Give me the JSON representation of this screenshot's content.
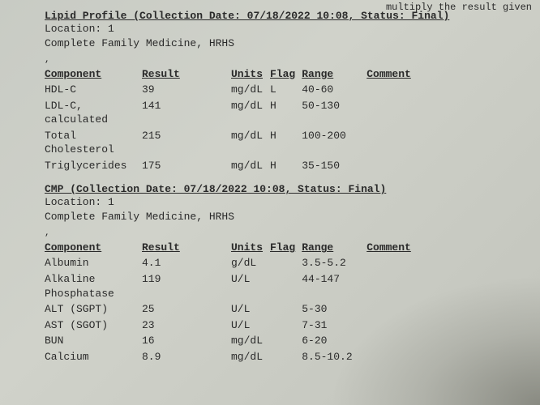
{
  "top_right_fragment": "multiply the result given",
  "lipid": {
    "title": "Lipid Profile (Collection Date: 07/18/2022 10:08, Status: Final)",
    "location": "Location: 1",
    "facility": "Complete Family Medicine, HRHS",
    "headers": {
      "component": "Component",
      "result": "Result",
      "units": "Units",
      "flag": "Flag",
      "range": "Range",
      "comment": "Comment"
    },
    "rows": [
      {
        "component": "HDL-C",
        "result": "39",
        "units": "mg/dL",
        "flag": "L",
        "range": "40-60",
        "comment": ""
      },
      {
        "component": "LDL-C, calculated",
        "result": "141",
        "units": "mg/dL",
        "flag": "H",
        "range": "50-130",
        "comment": ""
      },
      {
        "component": "Total Cholesterol",
        "result": "215",
        "units": "mg/dL",
        "flag": "H",
        "range": "100-200",
        "comment": ""
      },
      {
        "component": "Triglycerides",
        "result": "175",
        "units": "mg/dL",
        "flag": "H",
        "range": "35-150",
        "comment": ""
      }
    ]
  },
  "cmp": {
    "title": "CMP (Collection Date: 07/18/2022 10:08, Status: Final)",
    "location": "Location: 1",
    "facility": "Complete Family Medicine, HRHS",
    "headers": {
      "component": "Component",
      "result": "Result",
      "units": "Units",
      "flag": "Flag",
      "range": "Range",
      "comment": "Comment"
    },
    "rows": [
      {
        "component": "Albumin",
        "result": "4.1",
        "units": "g/dL",
        "flag": "",
        "range": "3.5-5.2",
        "comment": ""
      },
      {
        "component": "Alkaline Phosphatase",
        "result": "119",
        "units": "U/L",
        "flag": "",
        "range": "44-147",
        "comment": ""
      },
      {
        "component": "ALT (SGPT)",
        "result": "25",
        "units": "U/L",
        "flag": "",
        "range": "5-30",
        "comment": ""
      },
      {
        "component": "AST (SGOT)",
        "result": "23",
        "units": "U/L",
        "flag": "",
        "range": "7-31",
        "comment": ""
      },
      {
        "component": "BUN",
        "result": "16",
        "units": "mg/dL",
        "flag": "",
        "range": "6-20",
        "comment": ""
      },
      {
        "component": "Calcium",
        "result": "8.9",
        "units": "mg/dL",
        "flag": "",
        "range": "8.5-10.2",
        "comment": ""
      }
    ]
  }
}
